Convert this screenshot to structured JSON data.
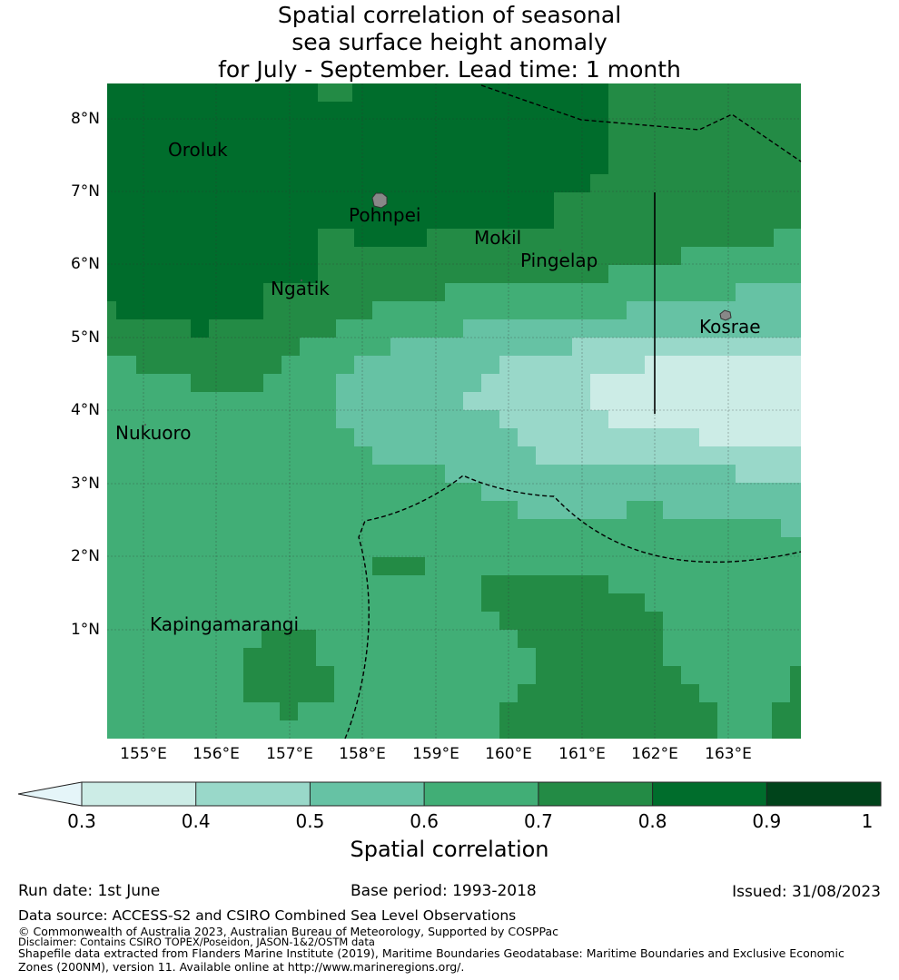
{
  "title": {
    "line1": "Spatial correlation of seasonal",
    "line2": "sea surface height anomaly",
    "line3": "for July - September. Lead time: 1 month"
  },
  "map": {
    "lat_ticks": [
      "8°N",
      "7°N",
      "6°N",
      "5°N",
      "4°N",
      "3°N",
      "2°N",
      "1°N"
    ],
    "lon_ticks": [
      "155°E",
      "156°E",
      "157°E",
      "158°E",
      "159°E",
      "160°E",
      "161°E",
      "162°E",
      "163°E"
    ],
    "places": [
      {
        "name": "Oroluk"
      },
      {
        "name": "Pohnpei"
      },
      {
        "name": "Mokil"
      },
      {
        "name": "Pingelap"
      },
      {
        "name": "Ngatik"
      },
      {
        "name": "Kosrae"
      },
      {
        "name": "Nukuoro"
      },
      {
        "name": "Kapingamarangi"
      }
    ],
    "colors": {
      "extend_low": "#e5f5f9",
      "c03": "#ccece6",
      "c04": "#99d8c9",
      "c05": "#66c2a4",
      "c06": "#41ae76",
      "c07": "#238b45",
      "c08": "#006d2c",
      "c09": "#00441b",
      "land": "#888888"
    }
  },
  "colorbar": {
    "ticks": [
      "0.3",
      "0.4",
      "0.5",
      "0.6",
      "0.7",
      "0.8",
      "0.9",
      "1"
    ],
    "label": "Spatial correlation"
  },
  "footer": {
    "run_date": "Run date: 1st June",
    "base_period": "Base period: 1993-2018",
    "issued": "Issued: 31/08/2023",
    "data_source": "Data source: ACCESS-S2 and CSIRO Combined Sea Level Observations",
    "copyright": "© Commonwealth of Australia 2023, Australian Bureau of Meteorology, Supported by COSPPac",
    "disclaimer": "Disclaimer: Contains CSIRO TOPEX/Poseidon, JASON-1&2/OSTM data",
    "shapefile": "Shapefile data extracted from Flanders Marine Institute (2019), Maritime Boundaries Geodatabase: Maritime Boundaries and Exclusive Economic Zones (200NM), version 11. Available online at http://www.marineregions.org/."
  }
}
